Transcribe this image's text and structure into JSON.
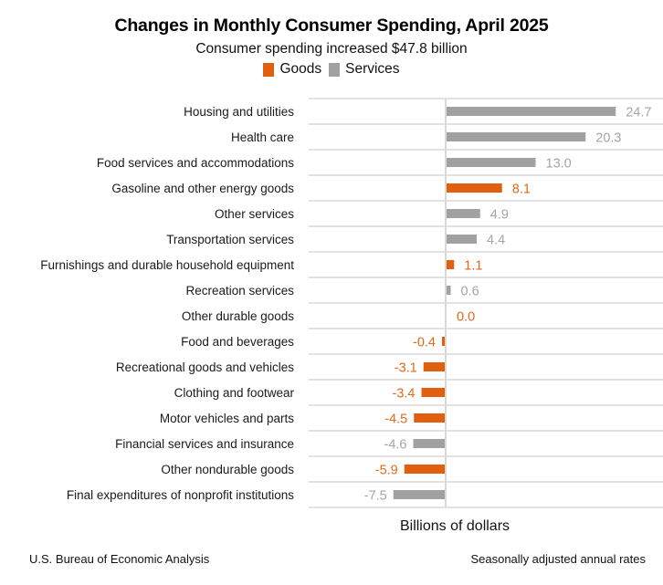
{
  "chart_data": {
    "type": "bar",
    "orientation": "horizontal",
    "title": "Changes in Monthly Consumer Spending, April 2025",
    "subtitle": "Consumer spending increased $47.8 billion",
    "xlabel": "Billions of dollars",
    "ylabel": "",
    "xlim": [
      -8,
      30
    ],
    "grid": "horizontal row separators",
    "legend": {
      "placement": "top-center",
      "entries": [
        {
          "name": "Goods",
          "color": "#E06010"
        },
        {
          "name": "Services",
          "color": "#A0A2A2"
        }
      ]
    },
    "categories": [
      "Housing and utilities",
      "Health care",
      "Food services and accommodations",
      "Gasoline and other energy goods",
      "Other services",
      "Transportation services",
      "Furnishings and durable household equipment",
      "Recreation services",
      "Other durable goods",
      "Food and beverages",
      "Recreational goods and vehicles",
      "Clothing and footwear",
      "Motor vehicles and parts",
      "Financial services and insurance",
      "Other nondurable goods",
      "Final expenditures of nonprofit institutions"
    ],
    "values": [
      24.7,
      20.3,
      13.0,
      8.1,
      4.9,
      4.4,
      1.1,
      0.6,
      0.0,
      -0.4,
      -3.1,
      -3.4,
      -4.5,
      -4.6,
      -5.9,
      -7.5
    ],
    "value_labels": [
      "24.7",
      "20.3",
      "13.0",
      "8.1",
      "4.9",
      "4.4",
      "1.1",
      "0.6",
      "0.0",
      "-0.4",
      "-3.1",
      "-3.4",
      "-4.5",
      "-4.6",
      "-5.9",
      "-7.5"
    ],
    "types": [
      "Services",
      "Services",
      "Services",
      "Goods",
      "Services",
      "Services",
      "Goods",
      "Services",
      "Goods",
      "Goods",
      "Goods",
      "Goods",
      "Goods",
      "Services",
      "Goods",
      "Services"
    ]
  },
  "colors": {
    "goods": "#E06010",
    "services": "#A0A2A2",
    "goods_label": "#E06A1A",
    "services_label": "#A5A5A5",
    "grid": "#D9D9D9"
  },
  "footer": {
    "source": "U.S. Bureau of Economic Analysis",
    "note": "Seasonally adjusted annual rates"
  }
}
